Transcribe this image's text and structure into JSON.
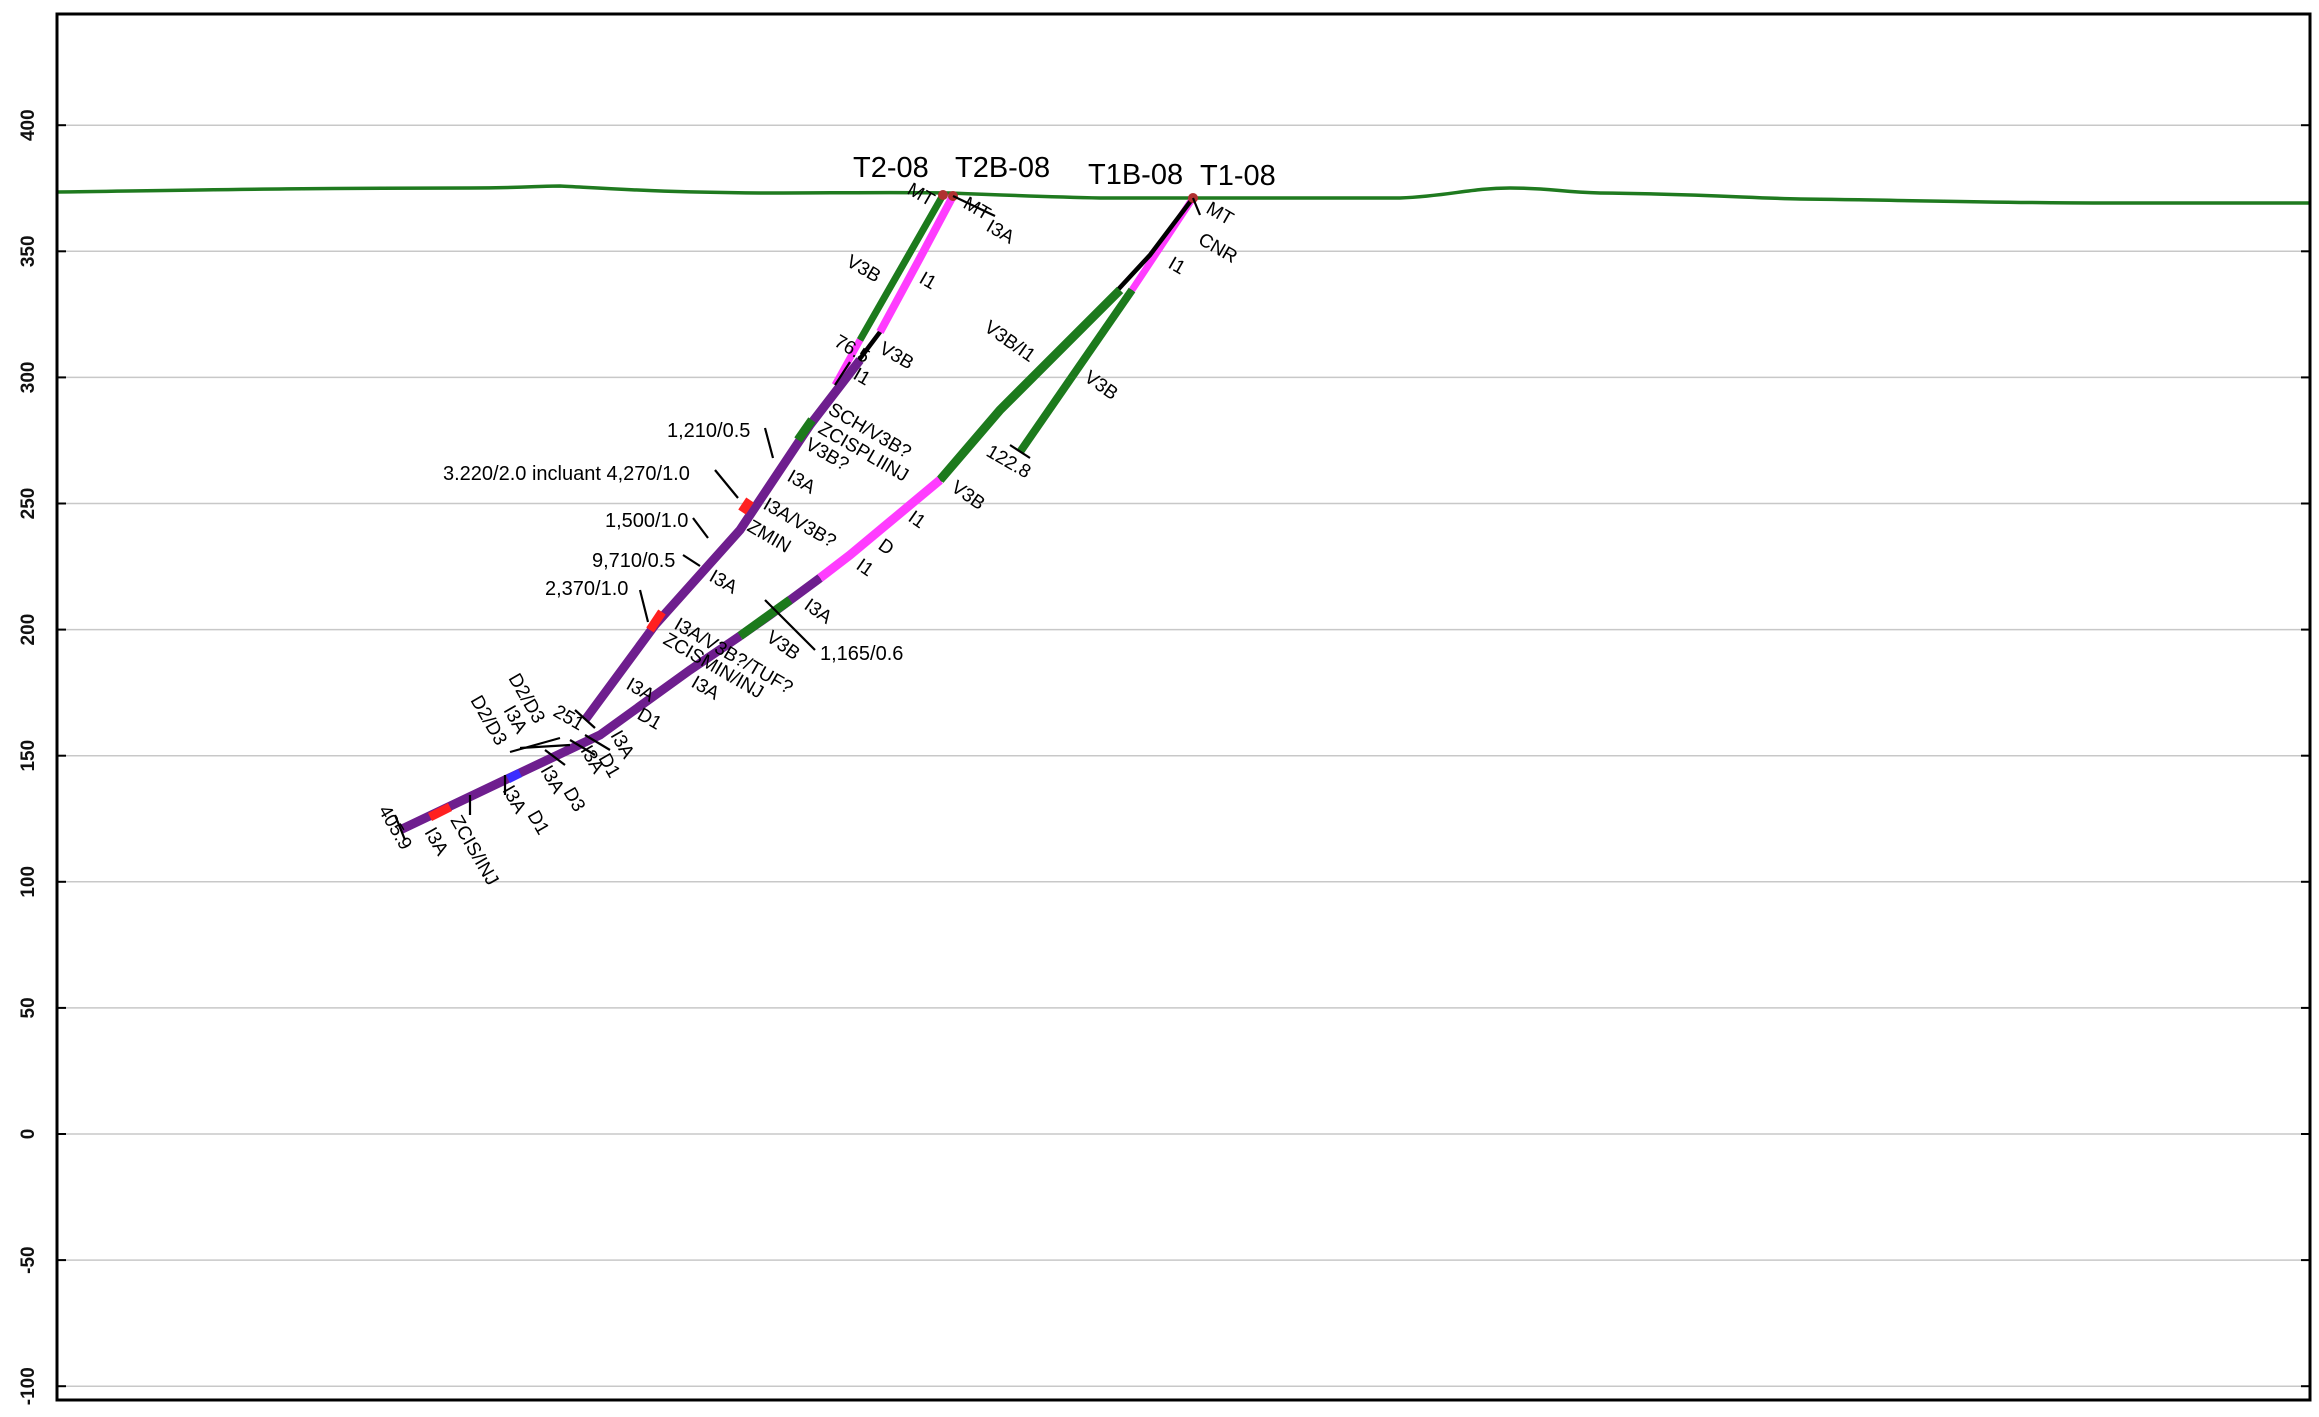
{
  "colors": {
    "topography": "#1f7a1f",
    "V3B": "#1c7a1c",
    "I1": "#ff3cff",
    "I3A": "#6e1e8e",
    "Z": "#ff2020",
    "D": "#3a2cff",
    "trace": "#000000",
    "collar": "#b03030"
  },
  "axis": {
    "ylim": [
      -105,
      450
    ],
    "ticks": [
      {
        "value": 400,
        "label": "400"
      },
      {
        "value": 350,
        "label": "350"
      },
      {
        "value": 300,
        "label": "300"
      },
      {
        "value": 250,
        "label": "250"
      },
      {
        "value": 200,
        "label": "200"
      },
      {
        "value": 150,
        "label": "150"
      },
      {
        "value": 100,
        "label": "100"
      },
      {
        "value": 50,
        "label": "50"
      },
      {
        "value": 0,
        "label": "0"
      },
      {
        "value": -50,
        "label": "-50"
      },
      {
        "value": -100,
        "label": "-100"
      }
    ]
  },
  "holes": [
    {
      "id": "T2-08",
      "label": "T2-08"
    },
    {
      "id": "T2B-08",
      "label": "T2B-08"
    },
    {
      "id": "T1B-08",
      "label": "T1B-08"
    },
    {
      "id": "T1-08",
      "label": "T1-08"
    }
  ],
  "depth_labels": [
    {
      "id": "t1b-end",
      "text": "122.8"
    },
    {
      "id": "t2b-end",
      "text": "76.5"
    },
    {
      "id": "t2-end",
      "text": "251"
    },
    {
      "id": "t1-end",
      "text": "405.9"
    }
  ],
  "interval_labels": [
    {
      "id": "mt-t2",
      "text": "MT"
    },
    {
      "id": "mt-t2b",
      "text": "MT"
    },
    {
      "id": "i3a-collar",
      "text": "I3A"
    },
    {
      "id": "v3b-upper",
      "text": "V3B"
    },
    {
      "id": "i1-upper",
      "text": "I1"
    },
    {
      "id": "v3b-t2b",
      "text": "V3B"
    },
    {
      "id": "i1-t2b",
      "text": "I1"
    },
    {
      "id": "sch",
      "text": "SCH/V3B?"
    },
    {
      "id": "zcis",
      "text": "ZCISPLIINJ"
    },
    {
      "id": "v3bq",
      "text": "V3B?"
    },
    {
      "id": "i3a-t2-1",
      "text": "I3A"
    },
    {
      "id": "i3a-v3bq",
      "text": "I3A/V3B?"
    },
    {
      "id": "zmin",
      "text": "ZMIN"
    },
    {
      "id": "i3a-t2-2",
      "text": "I3A"
    },
    {
      "id": "i3a-v3b-tuf",
      "text": "I3A/V3B?/TUF?"
    },
    {
      "id": "zcis-min",
      "text": "ZCISMIN/INJ"
    },
    {
      "id": "i3a-t2-3",
      "text": "I3A"
    },
    {
      "id": "i3a-t2-4",
      "text": "I3A"
    },
    {
      "id": "d1-t2",
      "text": "D1"
    },
    {
      "id": "d2d3-a",
      "text": "D2/D3"
    },
    {
      "id": "i3a-left-1",
      "text": "I3A"
    },
    {
      "id": "d2d3-b",
      "text": "D2/D3"
    },
    {
      "id": "i3a-r1",
      "text": "I3A"
    },
    {
      "id": "d1-r1",
      "text": "D1"
    },
    {
      "id": "i3a-r2",
      "text": "I3A"
    },
    {
      "id": "i3a-r3",
      "text": "I3A"
    },
    {
      "id": "d3-r3",
      "text": "D3"
    },
    {
      "id": "i3a-r4",
      "text": "I3A"
    },
    {
      "id": "d1-r4",
      "text": "D1"
    },
    {
      "id": "i3a-r5",
      "text": "I3A"
    },
    {
      "id": "zcisinj",
      "text": "ZCIS/INJ"
    },
    {
      "id": "mt-t1",
      "text": "MT"
    },
    {
      "id": "cnr",
      "text": "CNR"
    },
    {
      "id": "i1-t1",
      "text": "I1"
    },
    {
      "id": "v3b-i1",
      "text": "V3B/I1"
    },
    {
      "id": "v3b-t1b",
      "text": "V3B"
    },
    {
      "id": "v3b-t1-mid",
      "text": "V3B"
    },
    {
      "id": "i1-t1-mid",
      "text": "I1"
    },
    {
      "id": "d-t1",
      "text": "D"
    },
    {
      "id": "i1-t1-low",
      "text": "I1"
    },
    {
      "id": "i3a-t1",
      "text": "I3A"
    },
    {
      "id": "v3b-t1-low",
      "text": "V3B"
    }
  ],
  "assays": [
    {
      "id": "a1",
      "text": "1,210/0.5"
    },
    {
      "id": "a2",
      "text": "3.220/2.0 incluant 4,270/1.0"
    },
    {
      "id": "a3",
      "text": "1,500/1.0"
    },
    {
      "id": "a4",
      "text": "9,710/0.5"
    },
    {
      "id": "a5",
      "text": "2,370/1.0"
    },
    {
      "id": "a6",
      "text": "1,165/0.6"
    }
  ]
}
